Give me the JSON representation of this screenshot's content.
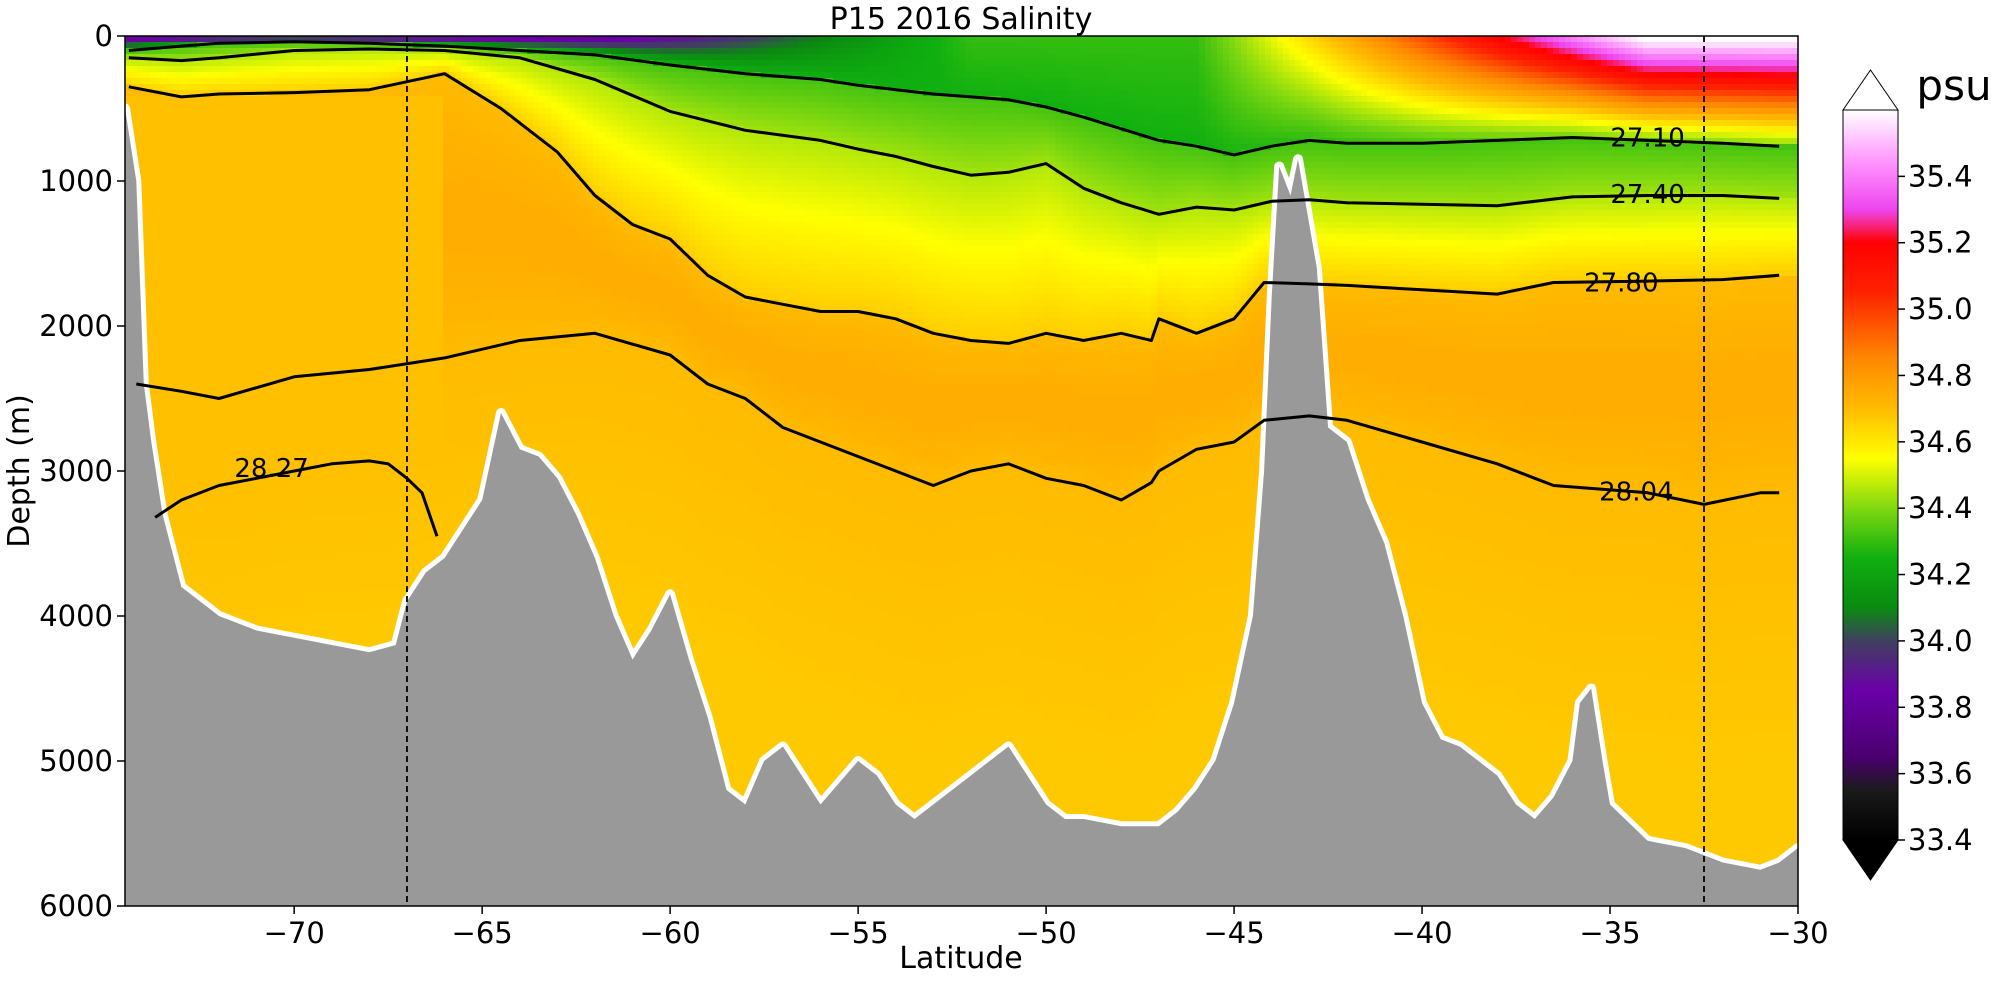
{
  "chart_data": {
    "type": "contour",
    "title": "P15 2016 Salinity",
    "xlabel": "Latitude",
    "ylabel": "Depth (m)",
    "xlim": [
      -74.5,
      -30
    ],
    "ylim": [
      6000,
      0
    ],
    "x_ticks": [
      -70,
      -65,
      -60,
      -55,
      -50,
      -45,
      -40,
      -35,
      -30
    ],
    "x_tick_labels": [
      "−70",
      "−65",
      "−60",
      "−55",
      "−50",
      "−45",
      "−40",
      "−35",
      "−30"
    ],
    "y_ticks": [
      0,
      1000,
      2000,
      3000,
      4000,
      5000,
      6000
    ],
    "y_tick_labels": [
      "0",
      "1000",
      "2000",
      "3000",
      "4000",
      "5000",
      "6000"
    ],
    "vertical_markers": [
      -67,
      -32.5
    ],
    "colorbar": {
      "label": "psu",
      "range": [
        33.4,
        35.6
      ],
      "ticks": [
        33.4,
        33.6,
        33.8,
        34.0,
        34.2,
        34.4,
        34.6,
        34.8,
        35.0,
        35.2,
        35.4
      ],
      "tick_labels": [
        "33.4",
        "33.6",
        "33.8",
        "34.0",
        "34.2",
        "34.4",
        "34.6",
        "34.8",
        "35.0",
        "35.2",
        "35.4"
      ],
      "colors": [
        {
          "v": 33.4,
          "c": "#000000"
        },
        {
          "v": 33.55,
          "c": "#1a1a1a"
        },
        {
          "v": 33.65,
          "c": "#4b0070"
        },
        {
          "v": 33.85,
          "c": "#6a00a8"
        },
        {
          "v": 34.0,
          "c": "#404060"
        },
        {
          "v": 34.1,
          "c": "#0a8a10"
        },
        {
          "v": 34.25,
          "c": "#10b010"
        },
        {
          "v": 34.4,
          "c": "#80d810"
        },
        {
          "v": 34.55,
          "c": "#ffff00"
        },
        {
          "v": 34.7,
          "c": "#ffbb00"
        },
        {
          "v": 34.85,
          "c": "#ff8800"
        },
        {
          "v": 35.05,
          "c": "#ff2200"
        },
        {
          "v": 35.2,
          "c": "#ff0000"
        },
        {
          "v": 35.3,
          "c": "#ee44ee"
        },
        {
          "v": 35.45,
          "c": "#ff99ff"
        },
        {
          "v": 35.6,
          "c": "#ffffff"
        }
      ]
    },
    "series": [
      {
        "name": "27.10",
        "label_at": [
          -34,
          700
        ],
        "values": [
          [
            -74.4,
            100
          ],
          [
            -73,
            70
          ],
          [
            -72,
            50
          ],
          [
            -70,
            40
          ],
          [
            -68,
            50
          ],
          [
            -66,
            70
          ],
          [
            -64,
            100
          ],
          [
            -62,
            130
          ],
          [
            -60,
            200
          ],
          [
            -58,
            260
          ],
          [
            -56,
            300
          ],
          [
            -55,
            340
          ],
          [
            -54,
            370
          ],
          [
            -53,
            400
          ],
          [
            -52,
            420
          ],
          [
            -51,
            440
          ],
          [
            -50,
            490
          ],
          [
            -49,
            560
          ],
          [
            -48,
            640
          ],
          [
            -47,
            720
          ],
          [
            -46,
            760
          ],
          [
            -45,
            820
          ],
          [
            -44,
            760
          ],
          [
            -43,
            720
          ],
          [
            -42,
            740
          ],
          [
            -40,
            740
          ],
          [
            -38,
            720
          ],
          [
            -36,
            700
          ],
          [
            -34,
            720
          ],
          [
            -32,
            740
          ],
          [
            -30.5,
            760
          ]
        ]
      },
      {
        "name": "27.40",
        "label_at": [
          -34,
          1090
        ],
        "values": [
          [
            -74.4,
            150
          ],
          [
            -73,
            170
          ],
          [
            -72,
            150
          ],
          [
            -70,
            100
          ],
          [
            -68,
            90
          ],
          [
            -66,
            100
          ],
          [
            -64,
            150
          ],
          [
            -62,
            300
          ],
          [
            -60,
            520
          ],
          [
            -58,
            650
          ],
          [
            -56,
            720
          ],
          [
            -55,
            780
          ],
          [
            -54,
            830
          ],
          [
            -53,
            900
          ],
          [
            -52,
            960
          ],
          [
            -51,
            940
          ],
          [
            -50,
            880
          ],
          [
            -49,
            1050
          ],
          [
            -48,
            1150
          ],
          [
            -47,
            1230
          ],
          [
            -46,
            1180
          ],
          [
            -45,
            1200
          ],
          [
            -44,
            1140
          ],
          [
            -43,
            1130
          ],
          [
            -42,
            1150
          ],
          [
            -40,
            1160
          ],
          [
            -38,
            1170
          ],
          [
            -36,
            1110
          ],
          [
            -34,
            1100
          ],
          [
            -32,
            1100
          ],
          [
            -30.5,
            1120
          ]
        ]
      },
      {
        "name": "27.80",
        "label_at": [
          -34.7,
          1700
        ],
        "values": [
          [
            -74.4,
            350
          ],
          [
            -73,
            420
          ],
          [
            -72,
            400
          ],
          [
            -70,
            390
          ],
          [
            -68,
            370
          ],
          [
            -66,
            260
          ],
          [
            -64.5,
            500
          ],
          [
            -63,
            800
          ],
          [
            -62,
            1100
          ],
          [
            -61,
            1300
          ],
          [
            -60,
            1400
          ],
          [
            -59,
            1650
          ],
          [
            -58,
            1800
          ],
          [
            -57,
            1850
          ],
          [
            -56,
            1900
          ],
          [
            -55,
            1900
          ],
          [
            -54,
            1950
          ],
          [
            -53,
            2050
          ],
          [
            -52,
            2100
          ],
          [
            -51,
            2120
          ],
          [
            -50,
            2050
          ],
          [
            -49,
            2100
          ],
          [
            -48,
            2050
          ],
          [
            -47.2,
            2100
          ],
          [
            -47,
            1950
          ],
          [
            -46,
            2050
          ],
          [
            -45,
            1950
          ],
          [
            -44.2,
            1700
          ],
          [
            -43,
            1710
          ],
          [
            -42,
            1720
          ],
          [
            -40,
            1750
          ],
          [
            -38,
            1780
          ],
          [
            -36.5,
            1700
          ],
          [
            -34,
            1690
          ],
          [
            -32,
            1680
          ],
          [
            -30.5,
            1650
          ]
        ]
      },
      {
        "name": "28.04",
        "label_at": [
          -34.3,
          3140
        ],
        "values": [
          [
            -74.2,
            2400
          ],
          [
            -73,
            2450
          ],
          [
            -72,
            2500
          ],
          [
            -70,
            2350
          ],
          [
            -68,
            2300
          ],
          [
            -66,
            2220
          ],
          [
            -64,
            2100
          ],
          [
            -62,
            2050
          ],
          [
            -60,
            2200
          ],
          [
            -59,
            2400
          ],
          [
            -58,
            2500
          ],
          [
            -57,
            2700
          ],
          [
            -56,
            2800
          ],
          [
            -55,
            2900
          ],
          [
            -54,
            3000
          ],
          [
            -53,
            3100
          ],
          [
            -52,
            3000
          ],
          [
            -51,
            2950
          ],
          [
            -50,
            3050
          ],
          [
            -49,
            3100
          ],
          [
            -48,
            3200
          ],
          [
            -47.2,
            3080
          ],
          [
            -47,
            3000
          ],
          [
            -46,
            2850
          ],
          [
            -45,
            2800
          ],
          [
            -44.2,
            2650
          ],
          [
            -43,
            2620
          ],
          [
            -42,
            2650
          ],
          [
            -40,
            2800
          ],
          [
            -38,
            2950
          ],
          [
            -37,
            3050
          ],
          [
            -36.5,
            3100
          ],
          [
            -34,
            3150
          ],
          [
            -32.5,
            3230
          ],
          [
            -31,
            3150
          ],
          [
            -30.5,
            3150
          ]
        ]
      },
      {
        "name": "28.27",
        "label_at": [
          -70.6,
          2980
        ],
        "values": [
          [
            -73.7,
            3320
          ],
          [
            -73,
            3200
          ],
          [
            -72,
            3100
          ],
          [
            -71,
            3050
          ],
          [
            -70,
            3000
          ],
          [
            -69,
            2950
          ],
          [
            -68,
            2930
          ],
          [
            -67.5,
            2950
          ],
          [
            -67,
            3050
          ],
          [
            -66.6,
            3150
          ],
          [
            -66.4,
            3300
          ],
          [
            -66.2,
            3450
          ]
        ]
      }
    ],
    "bathymetry": [
      [
        -74.5,
        6000
      ],
      [
        -74.5,
        500
      ],
      [
        -74.2,
        1000
      ],
      [
        -74,
        2400
      ],
      [
        -73.8,
        2800
      ],
      [
        -73.5,
        3300
      ],
      [
        -73,
        3800
      ],
      [
        -72,
        4000
      ],
      [
        -71,
        4100
      ],
      [
        -70,
        4150
      ],
      [
        -69,
        4200
      ],
      [
        -68,
        4250
      ],
      [
        -67.3,
        4200
      ],
      [
        -67,
        3900
      ],
      [
        -66.5,
        3700
      ],
      [
        -66,
        3600
      ],
      [
        -65,
        3200
      ],
      [
        -64.5,
        2600
      ],
      [
        -64,
        2850
      ],
      [
        -63.5,
        2900
      ],
      [
        -63,
        3050
      ],
      [
        -62.5,
        3300
      ],
      [
        -62,
        3600
      ],
      [
        -61.5,
        4000
      ],
      [
        -61,
        4300
      ],
      [
        -60.5,
        4100
      ],
      [
        -60,
        3850
      ],
      [
        -59.5,
        4300
      ],
      [
        -59,
        4700
      ],
      [
        -58.5,
        5200
      ],
      [
        -58,
        5300
      ],
      [
        -57.5,
        5000
      ],
      [
        -57,
        4900
      ],
      [
        -56.5,
        5100
      ],
      [
        -56,
        5300
      ],
      [
        -55.5,
        5150
      ],
      [
        -55,
        5000
      ],
      [
        -54.5,
        5100
      ],
      [
        -54,
        5300
      ],
      [
        -53.5,
        5400
      ],
      [
        -53,
        5300
      ],
      [
        -52,
        5100
      ],
      [
        -51,
        4900
      ],
      [
        -50.5,
        5100
      ],
      [
        -50,
        5300
      ],
      [
        -49.5,
        5400
      ],
      [
        -49,
        5400
      ],
      [
        -48,
        5450
      ],
      [
        -47,
        5450
      ],
      [
        -46.5,
        5350
      ],
      [
        -46,
        5200
      ],
      [
        -45.5,
        5000
      ],
      [
        -45,
        4600
      ],
      [
        -44.5,
        4000
      ],
      [
        -44.2,
        3000
      ],
      [
        -44,
        1800
      ],
      [
        -43.8,
        900
      ],
      [
        -43.5,
        1100
      ],
      [
        -43.3,
        850
      ],
      [
        -43,
        1300
      ],
      [
        -42.8,
        1600
      ],
      [
        -42.5,
        2700
      ],
      [
        -42,
        2800
      ],
      [
        -41.5,
        3200
      ],
      [
        -41,
        3500
      ],
      [
        -40.5,
        4000
      ],
      [
        -40,
        4600
      ],
      [
        -39.5,
        4850
      ],
      [
        -39,
        4900
      ],
      [
        -38,
        5100
      ],
      [
        -37.5,
        5300
      ],
      [
        -37,
        5400
      ],
      [
        -36.5,
        5250
      ],
      [
        -36,
        5000
      ],
      [
        -35.8,
        4600
      ],
      [
        -35.5,
        4500
      ],
      [
        -35.2,
        5000
      ],
      [
        -35,
        5300
      ],
      [
        -34,
        5550
      ],
      [
        -33,
        5600
      ],
      [
        -32,
        5700
      ],
      [
        -31,
        5750
      ],
      [
        -30.5,
        5700
      ],
      [
        -30,
        5600
      ],
      [
        -30,
        6000
      ]
    ]
  }
}
